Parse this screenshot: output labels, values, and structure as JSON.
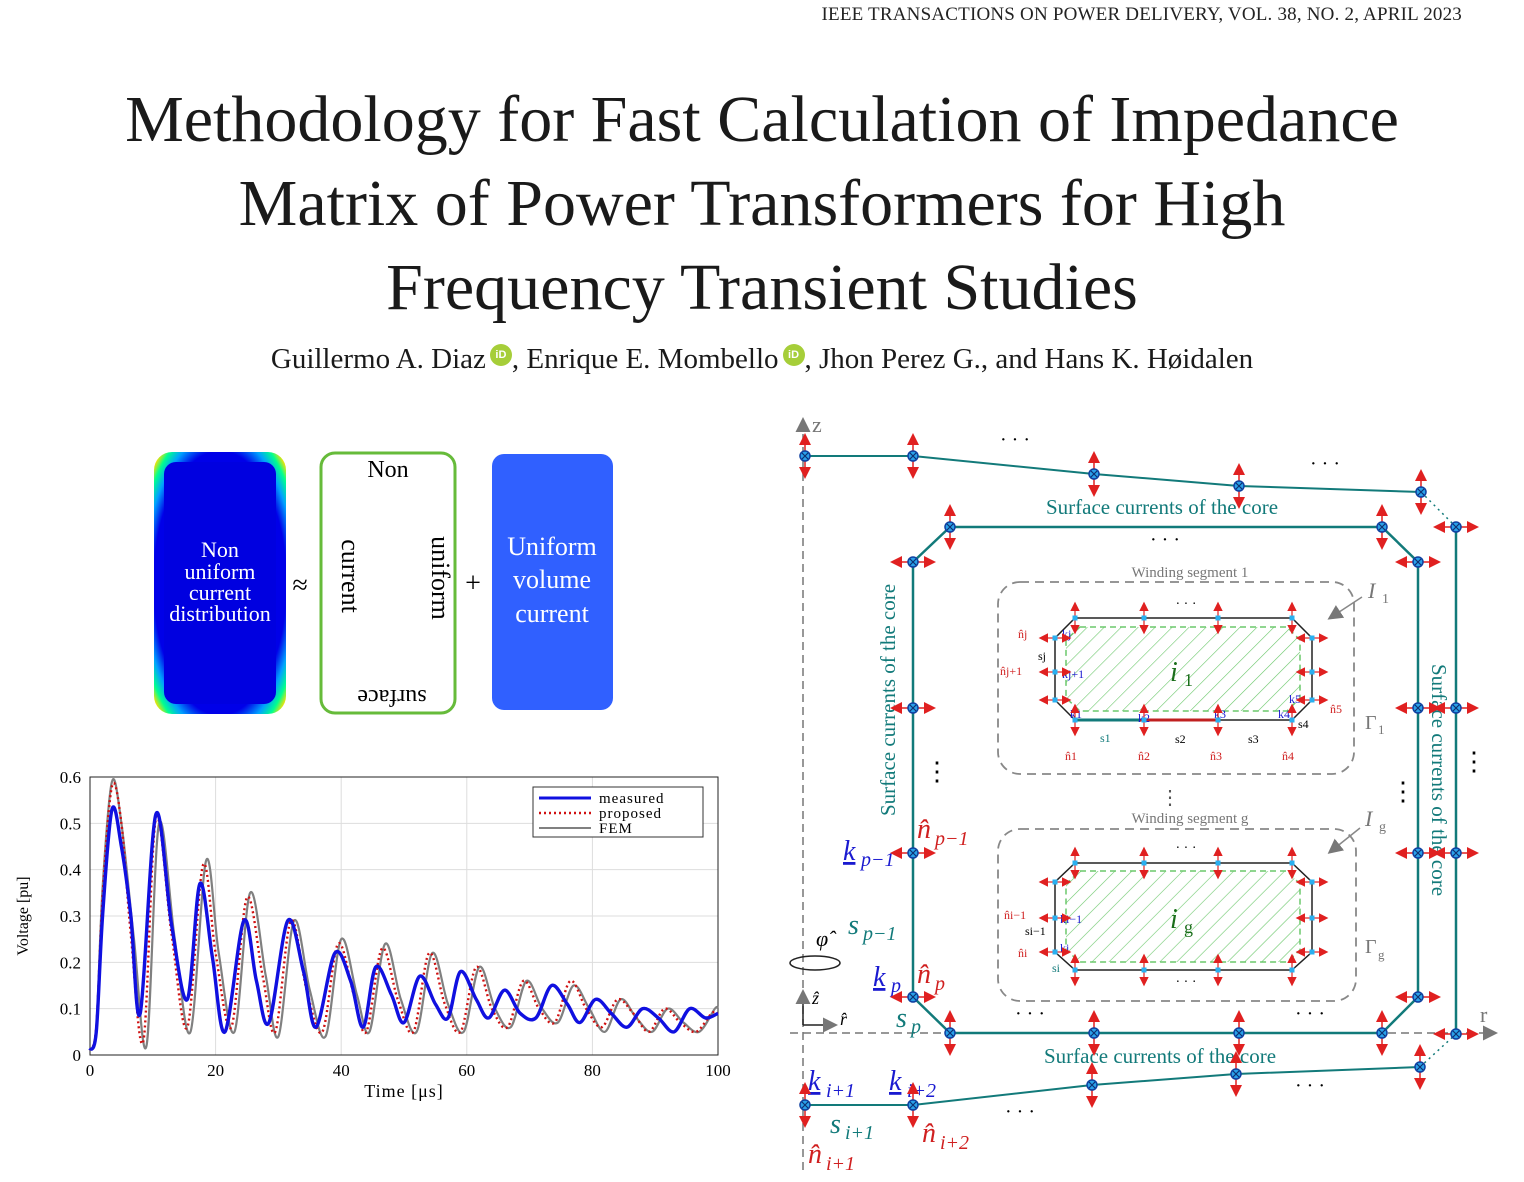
{
  "header": {
    "journal": "IEEE TRANSACTIONS ON POWER DELIVERY, VOL. 38, NO. 2, APRIL 2023"
  },
  "paper": {
    "title_lines": [
      "Methodology for Fast Calculation of Impedance",
      "Matrix of Power Transformers for High",
      "Frequency Transient Studies"
    ],
    "authors": [
      {
        "name": "Guillermo A. Diaz",
        "orcid": true,
        "sep": ", "
      },
      {
        "name": "Enrique E. Mombello",
        "orcid": true,
        "sep": ", "
      },
      {
        "name": "Jhon Perez G.",
        "orcid": false,
        "sep": ", and "
      },
      {
        "name": "Hans K. Høidalen",
        "orcid": false,
        "sep": ""
      }
    ],
    "orcid_label": "iD"
  },
  "decomposition": {
    "box1": [
      "Non",
      "uniform",
      "current",
      "distribution"
    ],
    "approx": "≈",
    "box2_top": "Non",
    "box2_left": "current",
    "box2_right": "uniform",
    "box2_bottom": "surface",
    "plus": "+",
    "box3": [
      "Uniform",
      "volume",
      "current"
    ]
  },
  "chart_data": {
    "type": "line",
    "xlabel": "Time [μs]",
    "ylabel": "Voltage [pu]",
    "xlim": [
      0,
      100
    ],
    "ylim": [
      0,
      0.6
    ],
    "xticks": [
      0,
      20,
      40,
      60,
      80,
      100
    ],
    "yticks": [
      0,
      0.1,
      0.2,
      0.3,
      0.4,
      0.5,
      0.6
    ],
    "grid": true,
    "legend_position": "top-right",
    "series": [
      {
        "name": "measured",
        "color": "#1010e0",
        "style": "solid",
        "x": [
          0,
          1,
          2,
          3.5,
          5,
          6.5,
          8,
          10.5,
          13,
          15.5,
          17.5,
          19.5,
          21.5,
          24.5,
          26.5,
          28.5,
          31.5,
          34,
          36,
          39,
          41.5,
          43.5,
          45.5,
          48,
          50,
          52.5,
          55,
          57,
          59,
          61.5,
          63.5,
          66,
          68.5,
          71,
          73.5,
          76,
          78,
          80.5,
          83,
          85.5,
          88,
          90.5,
          93,
          95.5,
          98,
          100
        ],
        "y": [
          0.01,
          0.05,
          0.3,
          0.53,
          0.45,
          0.3,
          0.09,
          0.52,
          0.28,
          0.12,
          0.37,
          0.21,
          0.05,
          0.29,
          0.16,
          0.07,
          0.29,
          0.18,
          0.06,
          0.22,
          0.16,
          0.06,
          0.19,
          0.13,
          0.07,
          0.17,
          0.11,
          0.08,
          0.18,
          0.12,
          0.08,
          0.14,
          0.09,
          0.08,
          0.15,
          0.11,
          0.07,
          0.12,
          0.09,
          0.06,
          0.1,
          0.08,
          0.05,
          0.1,
          0.08,
          0.09
        ]
      },
      {
        "name": "proposed",
        "color": "#d01010",
        "style": "dotted",
        "x": [
          0,
          1,
          2,
          3.5,
          5,
          6.5,
          8.5,
          10.5,
          13,
          15.5,
          18,
          20,
          22.5,
          25,
          27.5,
          29.5,
          32,
          34.5,
          37,
          39.5,
          42,
          44,
          46.5,
          49,
          51.5,
          54,
          56.5,
          59,
          61.5,
          64,
          66.5,
          69,
          71.5,
          74,
          76.5,
          79,
          81.5,
          84,
          86.5,
          89,
          91.5,
          94,
          96.5,
          99,
          100
        ],
        "y": [
          0.01,
          0.06,
          0.34,
          0.58,
          0.5,
          0.26,
          0.03,
          0.51,
          0.26,
          0.06,
          0.41,
          0.22,
          0.06,
          0.34,
          0.17,
          0.05,
          0.29,
          0.14,
          0.05,
          0.24,
          0.13,
          0.05,
          0.23,
          0.12,
          0.05,
          0.22,
          0.11,
          0.05,
          0.19,
          0.1,
          0.06,
          0.16,
          0.1,
          0.07,
          0.16,
          0.1,
          0.06,
          0.12,
          0.09,
          0.05,
          0.1,
          0.07,
          0.05,
          0.09,
          0.09
        ]
      },
      {
        "name": "FEM",
        "color": "#808080",
        "style": "solid",
        "x": [
          0,
          1,
          2,
          3.5,
          5,
          7,
          9,
          11,
          13.5,
          16,
          18.5,
          20.5,
          23,
          25.5,
          28,
          30,
          32.5,
          35,
          37.5,
          40,
          42.5,
          44.5,
          47,
          49.5,
          52,
          54.5,
          57,
          59.5,
          62,
          64.5,
          67,
          69.5,
          72,
          74.5,
          77,
          79.5,
          82,
          84.5,
          87,
          89.5,
          92,
          94.5,
          97,
          99.5,
          100
        ],
        "y": [
          0.01,
          0.06,
          0.36,
          0.59,
          0.5,
          0.25,
          0.02,
          0.5,
          0.25,
          0.05,
          0.42,
          0.22,
          0.05,
          0.35,
          0.17,
          0.04,
          0.29,
          0.14,
          0.04,
          0.25,
          0.13,
          0.05,
          0.24,
          0.12,
          0.05,
          0.22,
          0.11,
          0.05,
          0.19,
          0.1,
          0.06,
          0.16,
          0.1,
          0.07,
          0.15,
          0.1,
          0.05,
          0.12,
          0.08,
          0.05,
          0.1,
          0.07,
          0.05,
          0.1,
          0.1
        ]
      }
    ]
  },
  "diagram": {
    "axis_z": "z",
    "axis_r": "r",
    "core_top": "Surface currents of the core",
    "core_bottom": "Surface currents of the core",
    "core_left": "Surface currents of the core",
    "core_right": "Surface currents of the core",
    "seg1_title": "Winding  segment 1",
    "seg1_current": "i",
    "seg1_sub": "1",
    "seg1_I": "I",
    "seg1_Isub": "1",
    "seg1_gamma": "Γ",
    "seg1_gsub": "1",
    "segg_title": "Winding  segment g",
    "segg_current": "i",
    "segg_sub": "g",
    "segg_I": "I",
    "segg_Isub": "g",
    "segg_gamma": "Γ",
    "segg_gsub": "g",
    "phi": "φ̂",
    "zhat": "ẑ",
    "rhat": "r̂",
    "dots": "· · ·",
    "vdots": "⋮",
    "labels": {
      "k_p1": "k",
      "k_p1_sub": "p−1",
      "n_p1": "n̂",
      "n_p1_sub": "p−1",
      "s_p1": "s",
      "s_p1_sub": "p−1",
      "k_p": "k",
      "k_p_sub": "p",
      "n_p": "n̂",
      "n_p_sub": "p",
      "s_p": "s",
      "s_p_sub": "p",
      "k_i1": "k",
      "k_i1_sub": "i+1",
      "k_i2": "k",
      "k_i2_sub": "i+2",
      "s_i1": "s",
      "s_i1_sub": "i+1",
      "n_i1": "n̂",
      "n_i1_sub": "i+1",
      "n_i2": "n̂",
      "n_i2_sub": "i+2"
    },
    "seg1_small": {
      "kj": "kj",
      "kj1": "kj+1",
      "k1": "k1",
      "k2": "k2",
      "k3": "k3",
      "k4": "k4",
      "k5": "k5",
      "nj": "n̂j",
      "nj1": "n̂j+1",
      "n1": "n̂1",
      "n2": "n̂2",
      "n3": "n̂3",
      "n4": "n̂4",
      "n5": "n̂5",
      "sj": "sj",
      "s1": "s1",
      "s2": "s2",
      "s3": "s3",
      "s4": "s4"
    },
    "segg_small": {
      "ki1": "ki−1",
      "ki": "ki",
      "ni1": "n̂i−1",
      "ni": "n̂i",
      "si1": "si−1",
      "si": "si"
    }
  }
}
